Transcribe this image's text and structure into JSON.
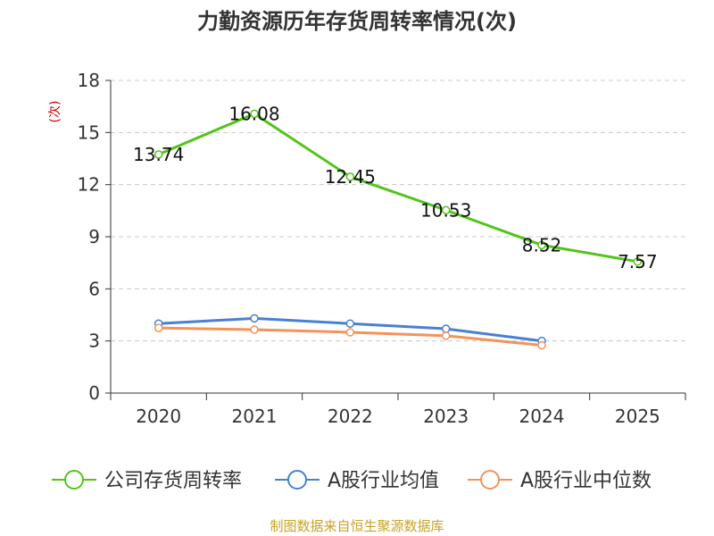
{
  "chart_data": {
    "type": "line",
    "title": "力勤资源历年存货周转率情况(次)",
    "ylabel": "(次)",
    "categories": [
      "2020",
      "2021",
      "2022",
      "2023",
      "2024",
      "2025"
    ],
    "ylim": [
      0,
      18
    ],
    "yticks": [
      0,
      3,
      6,
      9,
      12,
      15,
      18
    ],
    "grid": true,
    "legend_position": "bottom",
    "series": [
      {
        "name": "公司存货周转率",
        "color": "#52c41a",
        "values": [
          13.74,
          16.08,
          12.45,
          10.53,
          8.52,
          7.57
        ],
        "labels": [
          "13.74",
          "16.08",
          "12.45",
          "10.53",
          "8.52",
          "7.57"
        ]
      },
      {
        "name": "A股行业均值",
        "color": "#4a7fd6",
        "values": [
          4.0,
          4.3,
          4.0,
          3.7,
          3.0,
          null
        ]
      },
      {
        "name": "A股行业中位数",
        "color": "#f5925a",
        "values": [
          3.75,
          3.65,
          3.5,
          3.3,
          2.75,
          null
        ]
      }
    ]
  },
  "source": "制图数据来自恒生聚源数据库"
}
